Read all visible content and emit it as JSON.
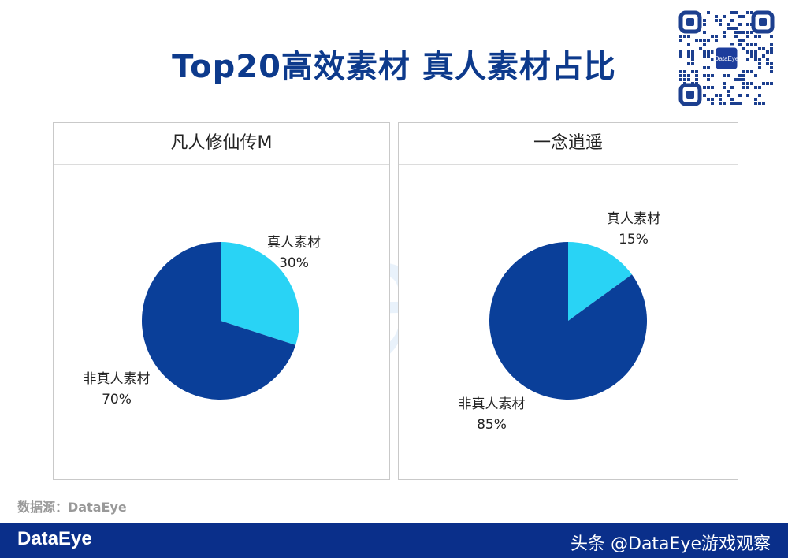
{
  "title": "Top20高效素材 真人素材占比",
  "source_label": "数据源：DataEye",
  "footer": {
    "logo": "DataEye",
    "credit": "头条 @DataEye游戏观察"
  },
  "qr_badge": "DataEye",
  "watermark": "DataEye",
  "colors": {
    "title": "#0d3a8c",
    "real_person": "#29d3f5",
    "non_real_person": "#0a3f99",
    "footer": "#0a2f8a"
  },
  "chart_data": [
    {
      "type": "pie",
      "title": "凡人修仙传M",
      "slices": [
        {
          "label": "真人素材",
          "value": 30,
          "value_label": "30%"
        },
        {
          "label": "非真人素材",
          "value": 70,
          "value_label": "70%"
        }
      ]
    },
    {
      "type": "pie",
      "title": "一念逍遥",
      "slices": [
        {
          "label": "真人素材",
          "value": 15,
          "value_label": "15%"
        },
        {
          "label": "非真人素材",
          "value": 85,
          "value_label": "85%"
        }
      ]
    }
  ]
}
